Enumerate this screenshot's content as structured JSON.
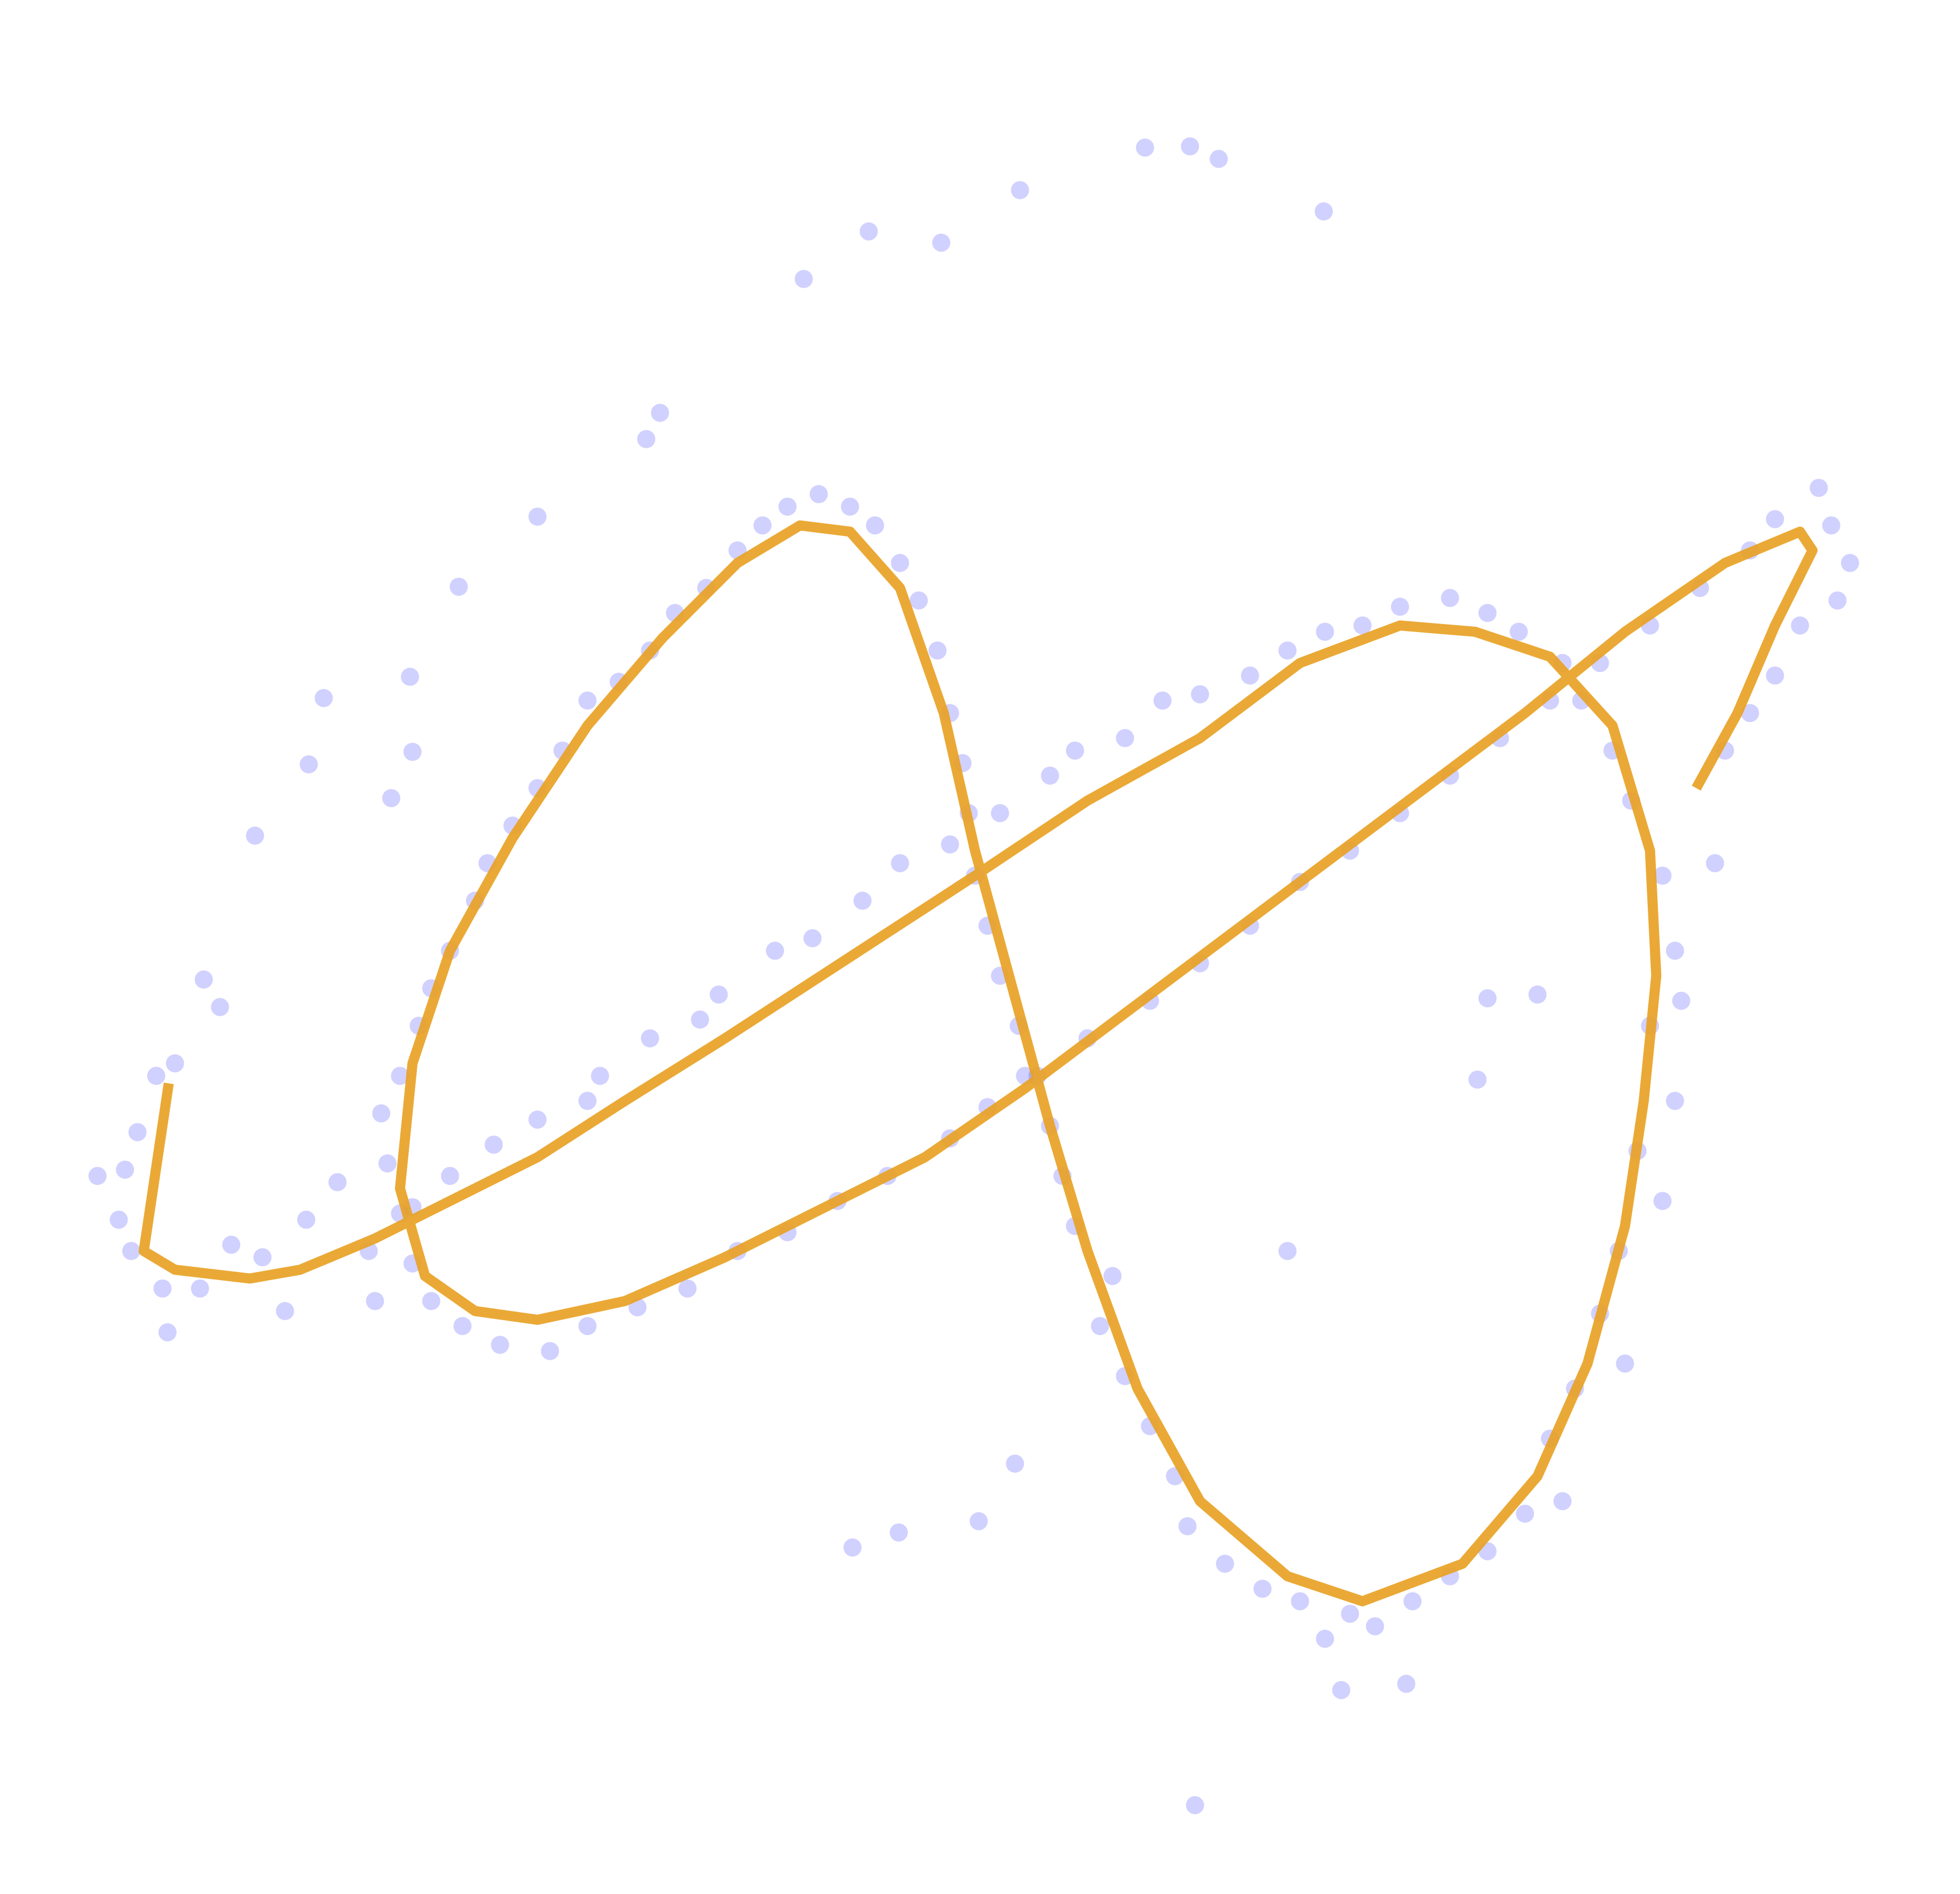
{
  "chart_data": {
    "type": "scatter",
    "xlim": [
      0,
      1568
    ],
    "ylim": [
      1514,
      0
    ],
    "series": [
      {
        "type": "scatter",
        "color": "#0000ff",
        "x": [
          125,
          140,
          110,
          100,
          78,
          95,
          105,
          130,
          160,
          185,
          210,
          228,
          245,
          270,
          295,
          300,
          330,
          360,
          395,
          430,
          470,
          480,
          520,
          560,
          575,
          620,
          650,
          690,
          720,
          760,
          800,
          840,
          860,
          900,
          930,
          960,
          1000,
          1030,
          1060,
          1090,
          1120,
          1160,
          1190,
          1215,
          1250,
          1265,
          1290,
          1305,
          1330,
          1340,
          1345,
          1320,
          1340,
          1310,
          1330,
          1295,
          1280,
          1300,
          1260,
          1240,
          1250,
          1220,
          1190,
          1160,
          1130,
          1100,
          1080,
          1060,
          1040,
          1010,
          980,
          950,
          940,
          920,
          900,
          880,
          890,
          860,
          850,
          840,
          820,
          815,
          800,
          790,
          780,
          775,
          770,
          760,
          750,
          735,
          720,
          700,
          680,
          655,
          630,
          610,
          590,
          565,
          540,
          520,
          495,
          470,
          450,
          430,
          410,
          390,
          380,
          360,
          345,
          335,
          320,
          305,
          310,
          320,
          330,
          345,
          370,
          400,
          440,
          470,
          510,
          550,
          590,
          630,
          670,
          710,
          760,
          790,
          830,
          870,
          920,
          960,
          1000,
          1040,
          1080,
          1120,
          1160,
          1200,
          1240,
          1280,
          1320,
          1360,
          1400,
          1420,
          1455,
          1465,
          1480,
          1470,
          1440,
          1420,
          1400,
          1380,
          916,
          952,
          975,
          816,
          1059,
          695,
          753,
          643,
          528,
          517,
          430,
          367,
          259,
          328,
          247,
          330,
          313,
          204,
          163,
          176,
          956,
          1073,
          1125,
          812,
          719,
          682,
          783,
          1182,
          1190,
          1230,
          1030,
          1372,
          134
        ],
        "y": [
          860,
          850,
          905,
          935,
          940,
          975,
          1000,
          1030,
          1030,
          995,
          1005,
          1048,
          975,
          945,
          1000,
          1040,
          965,
          940,
          915,
          895,
          880,
          860,
          830,
          815,
          795,
          760,
          750,
          720,
          690,
          675,
          650,
          620,
          600,
          590,
          560,
          555,
          540,
          520,
          505,
          500,
          485,
          478,
          490,
          505,
          530,
          560,
          600,
          640,
          700,
          760,
          800,
          820,
          880,
          920,
          960,
          1000,
          1050,
          1090,
          1110,
          1150,
          1200,
          1210,
          1240,
          1260,
          1280,
          1300,
          1290,
          1310,
          1280,
          1270,
          1250,
          1220,
          1180,
          1140,
          1100,
          1060,
          1020,
          980,
          940,
          900,
          860,
          820,
          780,
          740,
          700,
          650,
          610,
          570,
          520,
          480,
          450,
          420,
          405,
          395,
          405,
          420,
          440,
          470,
          490,
          520,
          545,
          560,
          600,
          630,
          660,
          690,
          720,
          760,
          790,
          820,
          860,
          890,
          930,
          970,
          1010,
          1040,
          1060,
          1075,
          1080,
          1060,
          1045,
          1030,
          1000,
          985,
          960,
          940,
          910,
          885,
          860,
          830,
          800,
          770,
          740,
          705,
          680,
          650,
          620,
          590,
          560,
          530,
          500,
          470,
          440,
          415,
          390,
          420,
          450,
          480,
          500,
          540,
          570,
          600,
          118,
          117,
          127,
          152,
          169,
          185,
          194,
          223,
          330,
          351,
          413,
          469,
          558,
          541,
          611,
          601,
          638,
          668,
          783,
          805,
          1443,
          1351,
          1346,
          1170,
          1225,
          1237,
          1216,
          863,
          798,
          795,
          1000,
          690,
          1065
        ]
      },
      {
        "type": "line",
        "color": "#e8a020",
        "x": [
          135,
          115,
          140,
          200,
          240,
          300,
          360,
          430,
          500,
          580,
          680,
          780,
          870,
          960,
          1040,
          1120,
          1180,
          1240,
          1290,
          1320,
          1325,
          1315,
          1300,
          1270,
          1230,
          1170,
          1090,
          1030,
          960,
          910,
          870,
          840,
          810,
          780,
          755,
          720,
          680,
          640,
          590,
          530,
          470,
          410,
          360,
          330,
          320,
          340,
          380,
          430,
          500,
          580,
          660,
          740,
          820,
          900,
          980,
          1060,
          1140,
          1220,
          1300,
          1380,
          1440,
          1450,
          1420,
          1390,
          1357
        ],
        "y": [
          866,
          1000,
          1015,
          1022,
          1015,
          990,
          960,
          925,
          880,
          830,
          765,
          700,
          640,
          590,
          530,
          500,
          505,
          525,
          580,
          680,
          780,
          880,
          980,
          1090,
          1180,
          1250,
          1280,
          1260,
          1200,
          1110,
          1000,
          900,
          790,
          680,
          570,
          470,
          425,
          420,
          450,
          510,
          580,
          670,
          760,
          850,
          950,
          1020,
          1048,
          1055,
          1040,
          1005,
          965,
          925,
          870,
          810,
          750,
          690,
          630,
          570,
          505,
          450,
          425,
          440,
          500,
          570,
          630
        ]
      }
    ]
  }
}
